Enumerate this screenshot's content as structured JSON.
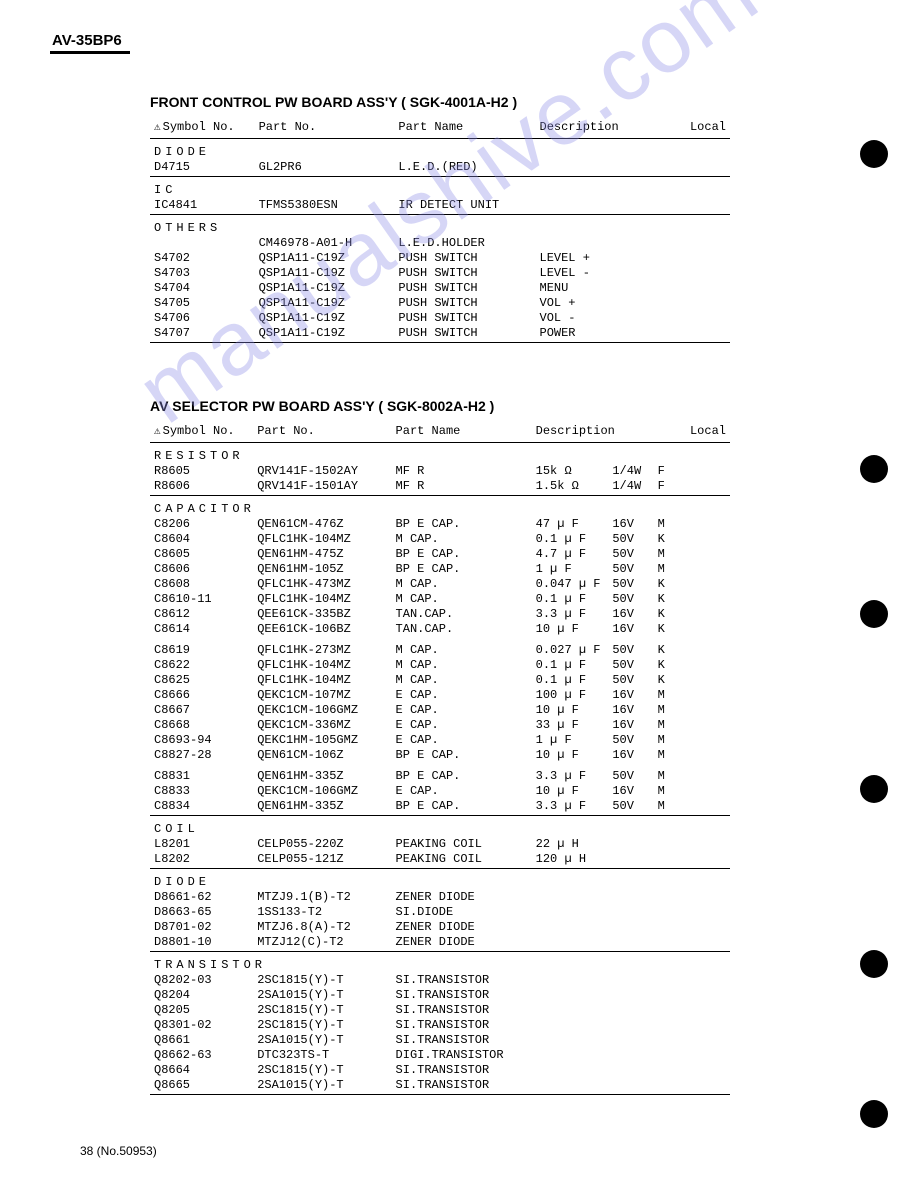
{
  "model": "AV-35BP6",
  "watermark": "manualshive.com",
  "pageNum": "38 (No.50953)",
  "headers": {
    "symbol": "Symbol No.",
    "part": "Part No.",
    "name": "Part Name",
    "desc": "Description",
    "local": "Local"
  },
  "section1": {
    "title": "FRONT CONTROL PW BOARD ASS'Y ( SGK-4001A-H2 )",
    "groups": [
      {
        "label": "DIODE",
        "ruleBelow": true,
        "rows": [
          {
            "sym": "D4715",
            "pno": "GL2PR6",
            "pname": "L.E.D.(RED)"
          }
        ]
      },
      {
        "label": "IC",
        "ruleBelow": true,
        "rows": [
          {
            "sym": "IC4841",
            "pno": "TFMS5380ESN",
            "pname": "IR DETECT UNIT"
          }
        ]
      },
      {
        "label": "OTHERS",
        "ruleBelow": true,
        "rows": [
          {
            "sym": "",
            "pno": "CM46978-A01-H",
            "pname": "L.E.D.HOLDER"
          },
          {
            "sym": "S4702",
            "pno": "QSP1A11-C19Z",
            "pname": "PUSH SWITCH",
            "d1": "LEVEL +"
          },
          {
            "sym": "S4703",
            "pno": "QSP1A11-C19Z",
            "pname": "PUSH SWITCH",
            "d1": "LEVEL -"
          },
          {
            "sym": "S4704",
            "pno": "QSP1A11-C19Z",
            "pname": "PUSH SWITCH",
            "d1": "MENU"
          },
          {
            "sym": "S4705",
            "pno": "QSP1A11-C19Z",
            "pname": "PUSH SWITCH",
            "d1": "VOL +"
          },
          {
            "sym": "S4706",
            "pno": "QSP1A11-C19Z",
            "pname": "PUSH SWITCH",
            "d1": "VOL -"
          },
          {
            "sym": "S4707",
            "pno": "QSP1A11-C19Z",
            "pname": "PUSH SWITCH",
            "d1": "POWER"
          }
        ]
      }
    ]
  },
  "section2": {
    "title": "AV SELECTOR PW BOARD ASS'Y ( SGK-8002A-H2 )",
    "groups": [
      {
        "label": "RESISTOR",
        "ruleBelow": true,
        "rows": [
          {
            "sym": "R8605",
            "pno": "QRV141F-1502AY",
            "pname": "MF R",
            "d1": "15k Ω",
            "d2": "1/4W",
            "d3": "F"
          },
          {
            "sym": "R8606",
            "pno": "QRV141F-1501AY",
            "pname": "MF R",
            "d1": "1.5k Ω",
            "d2": "1/4W",
            "d3": "F"
          }
        ]
      },
      {
        "label": "CAPACITOR",
        "rows": [
          {
            "sym": "C8206",
            "pno": "QEN61CM-476Z",
            "pname": "BP E CAP.",
            "d1": "47 µ F",
            "d2": "16V",
            "d3": "M"
          },
          {
            "sym": "C8604",
            "pno": "QFLC1HK-104MZ",
            "pname": "M CAP.",
            "d1": "0.1 µ F",
            "d2": "50V",
            "d3": "K"
          },
          {
            "sym": "C8605",
            "pno": "QEN61HM-475Z",
            "pname": "BP E CAP.",
            "d1": "4.7 µ F",
            "d2": "50V",
            "d3": "M"
          },
          {
            "sym": "C8606",
            "pno": "QEN61HM-105Z",
            "pname": "BP E CAP.",
            "d1": "1 µ F",
            "d2": "50V",
            "d3": "M"
          },
          {
            "sym": "C8608",
            "pno": "QFLC1HK-473MZ",
            "pname": "M CAP.",
            "d1": "0.047 µ F",
            "d2": "50V",
            "d3": "K"
          },
          {
            "sym": "C8610-11",
            "pno": "QFLC1HK-104MZ",
            "pname": "M CAP.",
            "d1": "0.1 µ F",
            "d2": "50V",
            "d3": "K"
          },
          {
            "sym": "C8612",
            "pno": "QEE61CK-335BZ",
            "pname": "TAN.CAP.",
            "d1": "3.3 µ F",
            "d2": "16V",
            "d3": "K"
          },
          {
            "sym": "C8614",
            "pno": "QEE61CK-106BZ",
            "pname": "TAN.CAP.",
            "d1": "10 µ F",
            "d2": "16V",
            "d3": "K"
          }
        ]
      },
      {
        "rows": [
          {
            "sym": "C8619",
            "pno": "QFLC1HK-273MZ",
            "pname": "M CAP.",
            "d1": "0.027 µ F",
            "d2": "50V",
            "d3": "K"
          },
          {
            "sym": "C8622",
            "pno": "QFLC1HK-104MZ",
            "pname": "M CAP.",
            "d1": "0.1 µ F",
            "d2": "50V",
            "d3": "K"
          },
          {
            "sym": "C8625",
            "pno": "QFLC1HK-104MZ",
            "pname": "M CAP.",
            "d1": "0.1 µ F",
            "d2": "50V",
            "d3": "K"
          },
          {
            "sym": "C8666",
            "pno": "QEKC1CM-107MZ",
            "pname": "E CAP.",
            "d1": "100 µ F",
            "d2": "16V",
            "d3": "M"
          },
          {
            "sym": "C8667",
            "pno": "QEKC1CM-106GMZ",
            "pname": "E CAP.",
            "d1": "10 µ F",
            "d2": "16V",
            "d3": "M"
          },
          {
            "sym": "C8668",
            "pno": "QEKC1CM-336MZ",
            "pname": "E CAP.",
            "d1": "33 µ F",
            "d2": "16V",
            "d3": "M"
          },
          {
            "sym": "C8693-94",
            "pno": "QEKC1HM-105GMZ",
            "pname": "E CAP.",
            "d1": "1 µ F",
            "d2": "50V",
            "d3": "M"
          },
          {
            "sym": "C8827-28",
            "pno": "QEN61CM-106Z",
            "pname": "BP E CAP.",
            "d1": "10 µ F",
            "d2": "16V",
            "d3": "M"
          }
        ]
      },
      {
        "ruleBelow": true,
        "rows": [
          {
            "sym": "C8831",
            "pno": "QEN61HM-335Z",
            "pname": "BP E CAP.",
            "d1": "3.3 µ F",
            "d2": "50V",
            "d3": "M"
          },
          {
            "sym": "C8833",
            "pno": "QEKC1CM-106GMZ",
            "pname": "E CAP.",
            "d1": "10 µ F",
            "d2": "16V",
            "d3": "M"
          },
          {
            "sym": "C8834",
            "pno": "QEN61HM-335Z",
            "pname": "BP E CAP.",
            "d1": "3.3 µ F",
            "d2": "50V",
            "d3": "M"
          }
        ]
      },
      {
        "label": "COIL",
        "ruleBelow": true,
        "rows": [
          {
            "sym": "L8201",
            "pno": "CELP055-220Z",
            "pname": "PEAKING COIL",
            "d1": "22 µ H"
          },
          {
            "sym": "L8202",
            "pno": "CELP055-121Z",
            "pname": "PEAKING COIL",
            "d1": "120 µ H"
          }
        ]
      },
      {
        "label": "DIODE",
        "ruleBelow": true,
        "rows": [
          {
            "sym": "D8661-62",
            "pno": "MTZJ9.1(B)-T2",
            "pname": "ZENER DIODE"
          },
          {
            "sym": "D8663-65",
            "pno": "1SS133-T2",
            "pname": "SI.DIODE"
          },
          {
            "sym": "D8701-02",
            "pno": "MTZJ6.8(A)-T2",
            "pname": "ZENER DIODE"
          },
          {
            "sym": "D8801-10",
            "pno": "MTZJ12(C)-T2",
            "pname": "ZENER DIODE"
          }
        ]
      },
      {
        "label": "TRANSISTOR",
        "ruleBelow": true,
        "rows": [
          {
            "sym": "Q8202-03",
            "pno": "2SC1815(Y)-T",
            "pname": "SI.TRANSISTOR"
          },
          {
            "sym": "Q8204",
            "pno": "2SA1015(Y)-T",
            "pname": "SI.TRANSISTOR"
          },
          {
            "sym": "Q8205",
            "pno": "2SC1815(Y)-T",
            "pname": "SI.TRANSISTOR"
          },
          {
            "sym": "Q8301-02",
            "pno": "2SC1815(Y)-T",
            "pname": "SI.TRANSISTOR"
          },
          {
            "sym": "Q8661",
            "pno": "2SA1015(Y)-T",
            "pname": "SI.TRANSISTOR"
          },
          {
            "sym": "Q8662-63",
            "pno": "DTC323TS-T",
            "pname": "DIGI.TRANSISTOR"
          },
          {
            "sym": "Q8664",
            "pno": "2SC1815(Y)-T",
            "pname": "SI.TRANSISTOR"
          },
          {
            "sym": "Q8665",
            "pno": "2SA1015(Y)-T",
            "pname": "SI.TRANSISTOR"
          }
        ]
      }
    ]
  },
  "dotY": [
    140,
    455,
    600,
    775,
    950,
    1100
  ]
}
